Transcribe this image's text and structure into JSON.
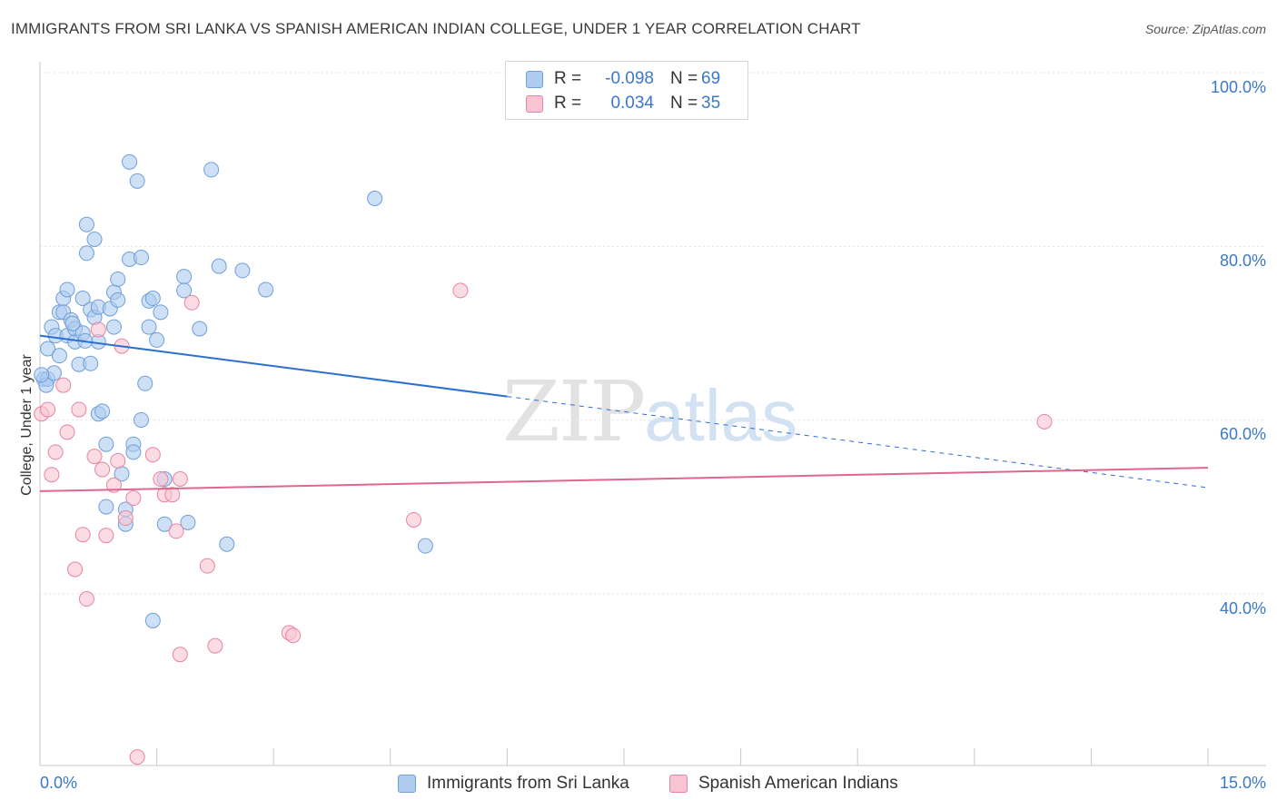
{
  "title": "IMMIGRANTS FROM SRI LANKA VS SPANISH AMERICAN INDIAN COLLEGE, UNDER 1 YEAR CORRELATION CHART",
  "source_prefix": "Source: ",
  "source_name": "ZipAtlas.com",
  "watermark": {
    "zip": "ZIP",
    "atlas": "atlas"
  },
  "legend": {
    "rows": [
      {
        "r_label": "R =",
        "r_value": "-0.098",
        "n_label": "N =",
        "n_value": "69",
        "color": "#aecbf0",
        "border": "#6f9fd8"
      },
      {
        "r_label": "R =",
        "r_value": "0.034",
        "n_label": "N =",
        "n_value": "35",
        "color": "#f8c4d3",
        "border": "#e8849f"
      }
    ]
  },
  "bottom_legend": [
    {
      "label": "Immigrants from Sri Lanka",
      "color": "#aecbf0",
      "border": "#6f9fd8"
    },
    {
      "label": "Spanish American Indians",
      "color": "#f8c4d3",
      "border": "#e8849f"
    }
  ],
  "axis_labels": {
    "x_min": "0.0%",
    "x_max": "15.0%",
    "y_ticks": [
      "100.0%",
      "80.0%",
      "60.0%",
      "40.0%"
    ]
  },
  "chart_data": {
    "type": "scatter",
    "title": "IMMIGRANTS FROM SRI LANKA VS SPANISH AMERICAN INDIAN COLLEGE, UNDER 1 YEAR CORRELATION CHART",
    "xlabel": "",
    "ylabel": "College, Under 1 year",
    "xlim": [
      0,
      15
    ],
    "ylim": [
      21,
      102
    ],
    "y_ticks": [
      100,
      80,
      60,
      40
    ],
    "grid": true,
    "series": [
      {
        "name": "Immigrants from Sri Lanka",
        "color": "#6f9fd8",
        "fill": "#aecbf0",
        "trend": {
          "x": [
            0,
            6
          ],
          "y": [
            71.5,
            64.5
          ],
          "dashed_to": [
            15,
            54
          ]
        },
        "points": [
          [
            0.05,
            66.5
          ],
          [
            0.1,
            70
          ],
          [
            0.1,
            66.5
          ],
          [
            0.15,
            72.5
          ],
          [
            0.2,
            71.5
          ],
          [
            0.25,
            74.2
          ],
          [
            0.25,
            69.2
          ],
          [
            0.3,
            75.8
          ],
          [
            0.3,
            74.2
          ],
          [
            0.35,
            76.8
          ],
          [
            0.35,
            71.5
          ],
          [
            0.4,
            73.3
          ],
          [
            0.45,
            70.8
          ],
          [
            0.45,
            72.3
          ],
          [
            0.5,
            68.2
          ],
          [
            0.55,
            75.8
          ],
          [
            0.55,
            71.8
          ],
          [
            0.6,
            84.3
          ],
          [
            0.6,
            81
          ],
          [
            0.65,
            74.5
          ],
          [
            0.65,
            68.3
          ],
          [
            0.7,
            82.6
          ],
          [
            0.7,
            73.6
          ],
          [
            0.75,
            74.8
          ],
          [
            0.75,
            70.8
          ],
          [
            0.75,
            62.5
          ],
          [
            0.8,
            62.8
          ],
          [
            0.85,
            59
          ],
          [
            0.85,
            51.8
          ],
          [
            0.9,
            74.6
          ],
          [
            0.95,
            76.5
          ],
          [
            0.95,
            72.5
          ],
          [
            1.0,
            78
          ],
          [
            1.0,
            75.6
          ],
          [
            1.05,
            55.6
          ],
          [
            1.1,
            51.5
          ],
          [
            1.1,
            49.8
          ],
          [
            1.15,
            91.5
          ],
          [
            1.15,
            80.3
          ],
          [
            1.2,
            59
          ],
          [
            1.2,
            58.1
          ],
          [
            1.25,
            89.3
          ],
          [
            1.3,
            80.5
          ],
          [
            1.3,
            61.8
          ],
          [
            1.35,
            66
          ],
          [
            1.4,
            75.5
          ],
          [
            1.4,
            72.5
          ],
          [
            1.45,
            75.8
          ],
          [
            1.45,
            38.7
          ],
          [
            1.5,
            71
          ],
          [
            1.55,
            74.2
          ],
          [
            1.6,
            55
          ],
          [
            1.6,
            49.8
          ],
          [
            1.85,
            78.3
          ],
          [
            1.85,
            76.7
          ],
          [
            1.9,
            50
          ],
          [
            2.05,
            72.3
          ],
          [
            2.2,
            90.6
          ],
          [
            2.3,
            79.5
          ],
          [
            2.4,
            47.5
          ],
          [
            2.6,
            79
          ],
          [
            2.9,
            76.8
          ],
          [
            4.3,
            87.3
          ],
          [
            4.95,
            47.3
          ],
          [
            0.08,
            65.8
          ],
          [
            0.18,
            67.2
          ],
          [
            0.42,
            72.9
          ],
          [
            0.58,
            70.9
          ],
          [
            0.02,
            67
          ]
        ]
      },
      {
        "name": "Spanish American Indians",
        "color": "#e8849f",
        "fill": "#f8c4d3",
        "trend": {
          "x": [
            0,
            15
          ],
          "y": [
            53.6,
            56.3
          ]
        },
        "points": [
          [
            0.02,
            62.5
          ],
          [
            0.1,
            63
          ],
          [
            0.15,
            55.5
          ],
          [
            0.2,
            58.1
          ],
          [
            0.3,
            65.8
          ],
          [
            0.35,
            60.4
          ],
          [
            0.45,
            44.6
          ],
          [
            0.5,
            63
          ],
          [
            0.55,
            48.6
          ],
          [
            0.6,
            41.2
          ],
          [
            0.7,
            57.6
          ],
          [
            0.75,
            72.2
          ],
          [
            0.8,
            56.1
          ],
          [
            0.85,
            48.5
          ],
          [
            0.95,
            54.3
          ],
          [
            1.0,
            57.1
          ],
          [
            1.05,
            70.3
          ],
          [
            1.1,
            50.5
          ],
          [
            1.2,
            52.8
          ],
          [
            1.25,
            23
          ],
          [
            1.45,
            57.8
          ],
          [
            1.55,
            55
          ],
          [
            1.6,
            53.2
          ],
          [
            1.7,
            53.2
          ],
          [
            1.75,
            49
          ],
          [
            1.8,
            55
          ],
          [
            1.8,
            34.8
          ],
          [
            1.95,
            75.3
          ],
          [
            2.15,
            45
          ],
          [
            2.25,
            35.8
          ],
          [
            3.2,
            37.3
          ],
          [
            3.25,
            37
          ],
          [
            4.8,
            50.3
          ],
          [
            5.4,
            76.7
          ],
          [
            12.9,
            61.6
          ]
        ]
      }
    ]
  }
}
